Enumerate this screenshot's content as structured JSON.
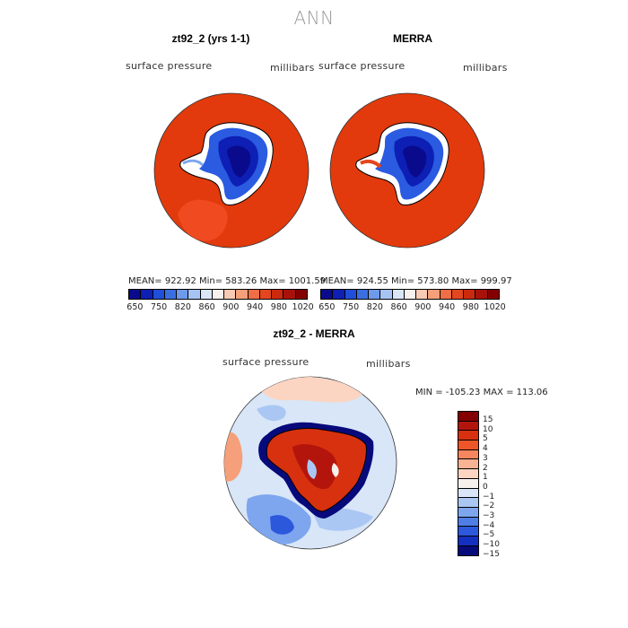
{
  "figure": {
    "title": "ANN"
  },
  "panels": [
    {
      "title": "zt92_2 (yrs 1-1)",
      "variable": "surface pressure",
      "units": "millibars",
      "stats": "MEAN= 922.92   Min= 583.26   Max= 1001.59"
    },
    {
      "title": "MERRA",
      "variable": "surface pressure",
      "units": "millibars",
      "stats": "MEAN= 924.55   Min= 573.80   Max= 999.97"
    },
    {
      "title": "zt92_2 - MERRA",
      "variable": "surface pressure",
      "units": "millibars",
      "stats": "MIN = -105.23  MAX = 113.06"
    }
  ],
  "colorbar_abs": {
    "ticks": [
      "650",
      "750",
      "820",
      "860",
      "900",
      "940",
      "980",
      "1020"
    ],
    "colors": [
      "#0a0a8c",
      "#0d1fb5",
      "#1f4fd8",
      "#3b6fe0",
      "#6f9aec",
      "#a7c3f3",
      "#d8e6f8",
      "#f6f0ee",
      "#f8c9b3",
      "#f5a07a",
      "#f06e45",
      "#e4461f",
      "#cc2a0c",
      "#a8120a",
      "#840000"
    ]
  },
  "colorbar_diff": {
    "labels": [
      "15",
      "10",
      "5",
      "4",
      "3",
      "2",
      "1",
      "0",
      "−1",
      "−2",
      "−3",
      "−4",
      "−5",
      "−10",
      "−15"
    ],
    "colors": [
      "#840000",
      "#b3150d",
      "#d8310f",
      "#ee5529",
      "#f5865e",
      "#f8b294",
      "#fbd5c2",
      "#f7f1ee",
      "#d8e6f8",
      "#aac7f3",
      "#7ea6ef",
      "#4f7fe6",
      "#2c58dc",
      "#1430c0",
      "#070a7a"
    ]
  }
}
